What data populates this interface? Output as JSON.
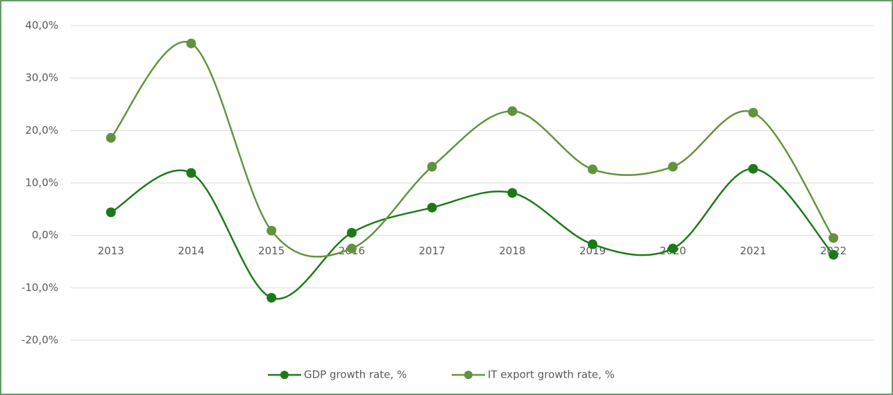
{
  "chart_data": {
    "type": "line",
    "smooth": true,
    "categories": [
      "2013",
      "2014",
      "2015",
      "2016",
      "2017",
      "2018",
      "2019",
      "2020",
      "2021",
      "2022"
    ],
    "series": [
      {
        "name": "GDP growth rate, %",
        "color": "#1b7a17",
        "values": [
          4.4,
          11.9,
          -11.9,
          0.5,
          5.3,
          8.1,
          -1.7,
          -2.5,
          12.7,
          -3.7
        ]
      },
      {
        "name": "IT export growth rate, %",
        "color": "#62933c",
        "values": [
          18.6,
          36.6,
          0.9,
          -2.5,
          13.1,
          23.7,
          12.6,
          13.1,
          23.4,
          -0.5
        ]
      }
    ],
    "ylim": [
      -20,
      40
    ],
    "yticks": [
      {
        "value": -20,
        "label": "-20,0%"
      },
      {
        "value": -10,
        "label": "-10,0%"
      },
      {
        "value": 0,
        "label": "0,0%"
      },
      {
        "value": 10,
        "label": "10,0%"
      },
      {
        "value": 20,
        "label": "20,0%"
      },
      {
        "value": 30,
        "label": "30,0%"
      },
      {
        "value": 40,
        "label": "40,0%"
      }
    ],
    "grid": true,
    "legend": "bottom"
  }
}
